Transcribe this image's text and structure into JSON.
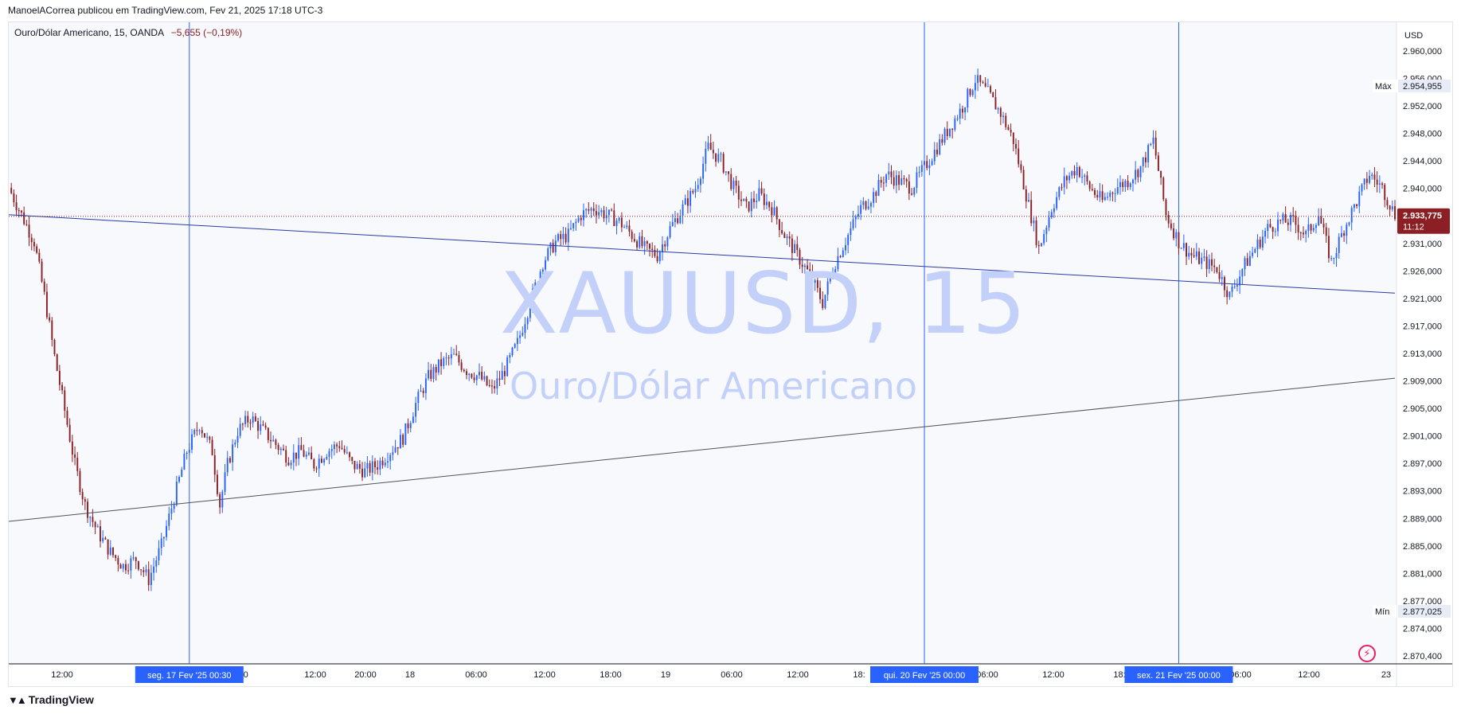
{
  "header": {
    "publish_line": "ManoelACorrea publicou em TradingView.com, Fev 21, 2025 17:18 UTC-3"
  },
  "symbol_info": {
    "name": "Ouro/Dólar Americano, 15, OANDA",
    "change": "−5,655 (−0,19%)"
  },
  "watermark": {
    "symbol": "XAUUSD, 15",
    "description": "Ouro/Dólar Americano"
  },
  "footer": {
    "brand": "TradingView"
  },
  "icons": {
    "flash": "flash-icon",
    "logo": "tradingview-logo-icon"
  },
  "colors": {
    "up": "#2962ff",
    "down": "#8b1f24",
    "price_label": "#8b1f24",
    "date_label": "#2962ff",
    "trendline": "#2b3aa8"
  },
  "chart_data": {
    "type": "candlestick",
    "currency": "USD",
    "ylim": [
      2867.5,
      2962.5
    ],
    "y_ticks": [
      "2.960,000",
      "2.956,000",
      "2.952,000",
      "2.948,000",
      "2.944,000",
      "2.940,000",
      "2.936,000",
      "2.931,000",
      "2.926,000",
      "2.921,000",
      "2.917,000",
      "2.913,000",
      "2.909,000",
      "2.905,000",
      "2.901,000",
      "2.897,000",
      "2.893,000",
      "2.889,000",
      "2.885,000",
      "2.881,000",
      "2.877,000",
      "2.874,000",
      "2.870,400"
    ],
    "x_ticks": [
      "12:00",
      "6:00",
      "12:00",
      "20:00",
      "18",
      "06:00",
      "12:00",
      "18:00",
      "19",
      "06:00",
      "12:00",
      "18:",
      "06:00",
      "12:00",
      "18:",
      "06:00",
      "12:00",
      "23"
    ],
    "date_labels": [
      "seg. 17 Fev '25   00:30",
      "qui. 20 Fev '25   00:00",
      "sex. 21 Fev '25   00:00"
    ],
    "current_price": {
      "value": 2933.775,
      "label": "2.933,775",
      "countdown": "11:12"
    },
    "high": {
      "label": "Máx",
      "value": 2954.955,
      "text": "2.954,955"
    },
    "low": {
      "label": "Mín",
      "value": 2877.025,
      "text": "2.877,025"
    },
    "price_path": [
      [
        0,
        2938
      ],
      [
        5,
        2934
      ],
      [
        10,
        2930
      ],
      [
        14,
        2922
      ],
      [
        18,
        2913
      ],
      [
        22,
        2905
      ],
      [
        26,
        2897
      ],
      [
        30,
        2891
      ],
      [
        35,
        2887
      ],
      [
        40,
        2884
      ],
      [
        45,
        2882
      ],
      [
        50,
        2883
      ],
      [
        55,
        2880
      ],
      [
        60,
        2885
      ],
      [
        65,
        2892
      ],
      [
        70,
        2899
      ],
      [
        75,
        2903
      ],
      [
        80,
        2899
      ],
      [
        83,
        2891
      ],
      [
        86,
        2897
      ],
      [
        90,
        2902
      ],
      [
        95,
        2904
      ],
      [
        100,
        2902
      ],
      [
        105,
        2900
      ],
      [
        110,
        2898
      ],
      [
        115,
        2899
      ],
      [
        120,
        2897
      ],
      [
        125,
        2899
      ],
      [
        130,
        2900
      ],
      [
        135,
        2897
      ],
      [
        140,
        2896
      ],
      [
        145,
        2897
      ],
      [
        150,
        2899
      ],
      [
        155,
        2901
      ],
      [
        160,
        2906
      ],
      [
        165,
        2910
      ],
      [
        170,
        2912
      ],
      [
        175,
        2913
      ],
      [
        180,
        2911
      ],
      [
        185,
        2910
      ],
      [
        190,
        2908
      ],
      [
        195,
        2911
      ],
      [
        200,
        2915
      ],
      [
        205,
        2921
      ],
      [
        210,
        2927
      ],
      [
        215,
        2930
      ],
      [
        220,
        2931
      ],
      [
        225,
        2934
      ],
      [
        230,
        2935
      ],
      [
        235,
        2934
      ],
      [
        240,
        2933
      ],
      [
        245,
        2931
      ],
      [
        250,
        2929
      ],
      [
        255,
        2928
      ],
      [
        260,
        2932
      ],
      [
        265,
        2935
      ],
      [
        270,
        2938
      ],
      [
        275,
        2944
      ],
      [
        280,
        2942
      ],
      [
        285,
        2938
      ],
      [
        290,
        2935
      ],
      [
        295,
        2937
      ],
      [
        300,
        2935
      ],
      [
        305,
        2931
      ],
      [
        310,
        2928
      ],
      [
        315,
        2925
      ],
      [
        320,
        2921
      ],
      [
        325,
        2927
      ],
      [
        330,
        2931
      ],
      [
        335,
        2935
      ],
      [
        340,
        2937
      ],
      [
        345,
        2940
      ],
      [
        350,
        2939
      ],
      [
        355,
        2938
      ],
      [
        360,
        2941
      ],
      [
        365,
        2944
      ],
      [
        370,
        2947
      ],
      [
        375,
        2950
      ],
      [
        380,
        2954
      ],
      [
        385,
        2952
      ],
      [
        390,
        2949
      ],
      [
        395,
        2945
      ],
      [
        400,
        2937
      ],
      [
        405,
        2929
      ],
      [
        410,
        2935
      ],
      [
        415,
        2939
      ],
      [
        420,
        2941
      ],
      [
        425,
        2938
      ],
      [
        430,
        2936
      ],
      [
        435,
        2938
      ],
      [
        440,
        2939
      ],
      [
        445,
        2941
      ],
      [
        450,
        2945
      ],
      [
        455,
        2934
      ],
      [
        460,
        2930
      ],
      [
        465,
        2928
      ],
      [
        470,
        2927
      ],
      [
        475,
        2926
      ],
      [
        480,
        2922
      ],
      [
        485,
        2926
      ],
      [
        490,
        2929
      ],
      [
        495,
        2932
      ],
      [
        500,
        2933
      ],
      [
        505,
        2933
      ],
      [
        510,
        2931
      ],
      [
        515,
        2934
      ],
      [
        520,
        2927
      ],
      [
        525,
        2932
      ],
      [
        530,
        2936
      ],
      [
        535,
        2940
      ],
      [
        540,
        2938
      ],
      [
        545,
        2934
      ]
    ],
    "lines": [
      {
        "name": "trendline-upper",
        "points": [
          [
            0,
            2934.0
          ],
          [
            545,
            2922.4
          ]
        ]
      },
      {
        "name": "trendline-lower",
        "points": [
          [
            0,
            2888.6
          ],
          [
            545,
            2909.8
          ]
        ]
      }
    ],
    "vertical_markers": [
      71,
      360,
      460
    ]
  }
}
